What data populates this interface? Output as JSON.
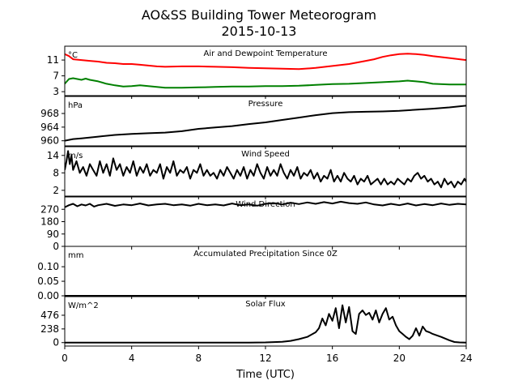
{
  "figure": {
    "title_line1": "AO&SS Building Tower Meteorogram",
    "title_line2": "2015-10-13",
    "xlabel": "Time (UTC)",
    "xticks": [
      0,
      4,
      8,
      12,
      16,
      20,
      24
    ],
    "xlim": [
      0,
      24
    ]
  },
  "chart_data": [
    {
      "type": "line",
      "title": "Air and Dewpoint Temperature",
      "unit": "°C",
      "ylim": [
        2,
        14.5
      ],
      "yticks": [
        3,
        7,
        11
      ],
      "series": [
        {
          "color": "#ff0000",
          "x": [
            0,
            0.25,
            0.5,
            1,
            1.5,
            2,
            2.5,
            3,
            3.5,
            4,
            4.5,
            5,
            5.5,
            6,
            7,
            8,
            9,
            10,
            11,
            12,
            13,
            14,
            15,
            16,
            17,
            18,
            18.5,
            19,
            19.5,
            20,
            20.5,
            21,
            21.5,
            22,
            23,
            24
          ],
          "y": [
            12.5,
            12.0,
            11.2,
            11.0,
            10.8,
            10.6,
            10.3,
            10.2,
            10.0,
            10.0,
            9.8,
            9.6,
            9.4,
            9.3,
            9.4,
            9.4,
            9.3,
            9.2,
            9.0,
            8.9,
            8.8,
            8.7,
            9.0,
            9.5,
            10.0,
            10.8,
            11.2,
            11.8,
            12.2,
            12.5,
            12.6,
            12.5,
            12.3,
            12.0,
            11.5,
            11.0
          ]
        },
        {
          "color": "#008000",
          "x": [
            0,
            0.25,
            0.5,
            1,
            1.25,
            1.5,
            2,
            2.5,
            3,
            3.5,
            4,
            4.5,
            5,
            5.5,
            6,
            7,
            8,
            9,
            10,
            11,
            12,
            13,
            14,
            15,
            16,
            17,
            18,
            19,
            20,
            20.5,
            21,
            21.5,
            22,
            23,
            24
          ],
          "y": [
            5.0,
            6.2,
            6.4,
            6.0,
            6.3,
            6.0,
            5.6,
            5.0,
            4.6,
            4.3,
            4.4,
            4.6,
            4.4,
            4.2,
            4.0,
            4.0,
            4.1,
            4.2,
            4.3,
            4.3,
            4.4,
            4.4,
            4.5,
            4.7,
            4.9,
            5.0,
            5.2,
            5.4,
            5.6,
            5.8,
            5.6,
            5.4,
            5.0,
            4.8,
            4.8
          ]
        }
      ]
    },
    {
      "type": "line",
      "title": "Pressure",
      "unit": "hPa",
      "ylim": [
        958.5,
        973
      ],
      "yticks": [
        960,
        964,
        968
      ],
      "series": [
        {
          "color": "#000000",
          "x": [
            0,
            0.5,
            1,
            2,
            3,
            4,
            5,
            6,
            7,
            8,
            9,
            10,
            11,
            12,
            13,
            14,
            15,
            16,
            17,
            18,
            19,
            20,
            21,
            22,
            23,
            24
          ],
          "y": [
            960.0,
            960.5,
            960.7,
            961.2,
            961.7,
            962.0,
            962.2,
            962.4,
            962.8,
            963.5,
            963.9,
            964.3,
            964.9,
            965.4,
            966.1,
            966.8,
            967.5,
            968.1,
            968.4,
            968.5,
            968.6,
            968.8,
            969.1,
            969.4,
            969.8,
            970.3
          ]
        }
      ]
    },
    {
      "type": "line",
      "title": "Wind Speed",
      "unit": "m/s",
      "ylim": [
        0,
        17
      ],
      "yticks": [
        2,
        8,
        14
      ],
      "series": [
        {
          "color": "#000000",
          "x": [
            0,
            0.1,
            0.2,
            0.3,
            0.4,
            0.5,
            0.7,
            0.9,
            1.1,
            1.3,
            1.5,
            1.7,
            1.9,
            2.1,
            2.3,
            2.5,
            2.7,
            2.9,
            3.1,
            3.3,
            3.5,
            3.7,
            3.9,
            4.1,
            4.3,
            4.5,
            4.7,
            4.9,
            5.1,
            5.3,
            5.5,
            5.7,
            5.9,
            6.1,
            6.3,
            6.5,
            6.7,
            6.9,
            7.1,
            7.3,
            7.5,
            7.7,
            7.9,
            8.1,
            8.3,
            8.5,
            8.7,
            8.9,
            9.1,
            9.3,
            9.5,
            9.7,
            9.9,
            10.1,
            10.3,
            10.5,
            10.7,
            10.9,
            11.1,
            11.3,
            11.5,
            11.7,
            11.9,
            12.1,
            12.3,
            12.5,
            12.7,
            12.9,
            13.1,
            13.3,
            13.5,
            13.7,
            13.9,
            14.1,
            14.3,
            14.5,
            14.7,
            14.9,
            15.1,
            15.3,
            15.5,
            15.7,
            15.9,
            16.1,
            16.3,
            16.5,
            16.7,
            16.9,
            17.1,
            17.3,
            17.5,
            17.7,
            17.9,
            18.1,
            18.3,
            18.5,
            18.7,
            18.9,
            19.1,
            19.3,
            19.5,
            19.7,
            19.9,
            20.1,
            20.3,
            20.5,
            20.7,
            20.9,
            21.1,
            21.3,
            21.5,
            21.7,
            21.9,
            22.1,
            22.3,
            22.5,
            22.7,
            22.9,
            23.1,
            23.3,
            23.5,
            23.7,
            23.9,
            24
          ],
          "y": [
            9,
            12,
            15.5,
            11,
            14,
            9,
            12,
            8,
            10,
            7,
            11,
            9,
            7,
            12,
            8,
            11,
            7,
            13,
            9,
            11,
            7,
            10,
            8,
            12,
            7,
            10,
            8,
            11,
            7,
            9,
            8,
            11,
            6,
            10,
            8,
            12,
            7,
            9,
            8,
            10,
            6,
            9,
            8,
            11,
            7,
            9,
            7,
            8,
            6,
            9,
            7,
            10,
            8,
            6,
            9,
            7,
            10,
            6,
            9,
            7,
            11,
            8,
            6,
            10,
            7,
            9,
            7,
            11,
            8,
            6,
            9,
            7,
            10,
            6,
            8,
            7,
            9,
            6,
            8,
            5,
            7,
            6,
            9,
            5,
            7,
            5,
            8,
            6,
            5,
            7,
            4,
            6,
            5,
            7,
            4,
            5,
            6,
            4,
            6,
            4,
            5,
            4,
            6,
            5,
            4,
            6,
            5,
            7,
            8,
            6,
            7,
            5,
            6,
            4,
            5,
            3,
            6,
            4,
            5,
            3,
            5,
            4,
            6,
            5
          ]
        }
      ]
    },
    {
      "type": "line",
      "title": "Wind Direction",
      "unit": "",
      "ylim": [
        0,
        360
      ],
      "yticks": [
        0,
        90,
        180,
        270
      ],
      "series": [
        {
          "color": "#000000",
          "x": [
            0,
            0.25,
            0.5,
            0.75,
            1,
            1.25,
            1.5,
            1.75,
            2,
            2.5,
            3,
            3.5,
            4,
            4.5,
            5,
            5.5,
            6,
            6.5,
            7,
            7.5,
            8,
            8.5,
            9,
            9.5,
            10,
            10.5,
            11,
            11.5,
            12,
            12.5,
            13,
            13.5,
            14,
            14.5,
            15,
            15.5,
            16,
            16.5,
            17,
            17.5,
            18,
            18.5,
            19,
            19.5,
            20,
            20.5,
            21,
            21.5,
            22,
            22.5,
            23,
            23.5,
            24
          ],
          "y": [
            285,
            300,
            310,
            292,
            305,
            298,
            310,
            290,
            300,
            310,
            295,
            305,
            300,
            312,
            298,
            305,
            310,
            300,
            306,
            296,
            310,
            300,
            305,
            298,
            312,
            300,
            306,
            296,
            310,
            315,
            305,
            318,
            308,
            320,
            310,
            322,
            312,
            325,
            315,
            310,
            320,
            305,
            298,
            310,
            300,
            312,
            298,
            308,
            300,
            312,
            302,
            310,
            305
          ]
        }
      ]
    },
    {
      "type": "line",
      "title": "Accumulated Precipitation Since 0Z",
      "unit": "mm",
      "ylim": [
        0,
        0.17
      ],
      "yticks": [
        0.0,
        0.05,
        0.1
      ],
      "yticklabels": [
        "0.00",
        "0.05",
        "0.10"
      ],
      "series": [
        {
          "color": "#000000",
          "x": [
            0,
            24
          ],
          "y": [
            0,
            0
          ]
        }
      ]
    },
    {
      "type": "line",
      "title": "Solar Flux",
      "unit": "W/m^2",
      "ylim": [
        -60,
        800
      ],
      "yticks": [
        0,
        238,
        476
      ],
      "series": [
        {
          "color": "#000000",
          "x": [
            0,
            11,
            12,
            13,
            13.5,
            14,
            14.5,
            15,
            15.2,
            15.4,
            15.6,
            15.8,
            16,
            16.2,
            16.4,
            16.6,
            16.8,
            17,
            17.2,
            17.4,
            17.6,
            17.8,
            18,
            18.2,
            18.4,
            18.6,
            18.8,
            19,
            19.2,
            19.4,
            19.6,
            19.8,
            20,
            20.2,
            20.4,
            20.6,
            20.8,
            21,
            21.2,
            21.4,
            21.6,
            21.8,
            22,
            22.5,
            23,
            23.3,
            23.6,
            24
          ],
          "y": [
            0,
            0,
            3,
            15,
            30,
            60,
            100,
            180,
            250,
            420,
            300,
            500,
            380,
            600,
            250,
            650,
            350,
            620,
            200,
            150,
            500,
            560,
            480,
            520,
            400,
            560,
            350,
            500,
            600,
            400,
            450,
            300,
            200,
            150,
            100,
            60,
            120,
            250,
            120,
            280,
            200,
            180,
            150,
            100,
            40,
            10,
            3,
            0
          ]
        }
      ]
    }
  ]
}
